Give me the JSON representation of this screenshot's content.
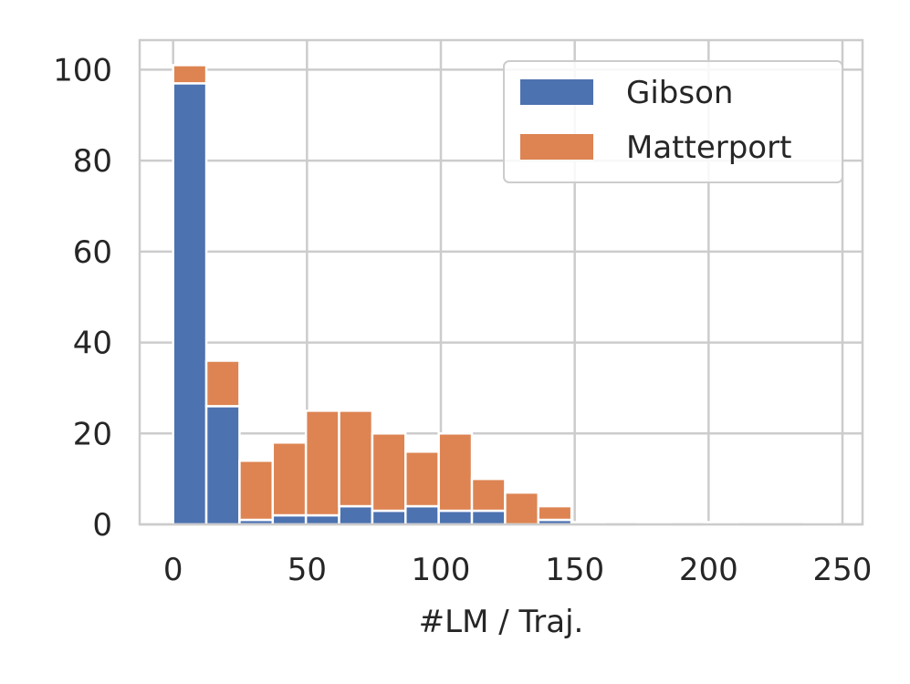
{
  "chart_data": {
    "type": "bar",
    "stacked": true,
    "xlabel": "#LM / Traj.",
    "ylabel": "",
    "title": "",
    "xlim": [
      -12.5,
      257.5
    ],
    "ylim": [
      0,
      106.5
    ],
    "xticks": [
      0,
      50,
      100,
      150,
      200,
      250
    ],
    "yticks": [
      0,
      20,
      40,
      60,
      80,
      100
    ],
    "grid": true,
    "legend_position": "top-right",
    "bin_width": 12.4,
    "bins": [
      0,
      12.4,
      24.8,
      37.2,
      49.6,
      62.0,
      74.4,
      86.8,
      99.2,
      111.6,
      124.0,
      136.4,
      148.8,
      161.2,
      173.6,
      186.0,
      198.4,
      210.8,
      223.2,
      235.6
    ],
    "series": [
      {
        "name": "Gibson",
        "color": "#4c72b0",
        "values": [
          97,
          26,
          1,
          2,
          2,
          4,
          3,
          4,
          3,
          3,
          0,
          1,
          0.5,
          0,
          0.5,
          0,
          0.5,
          0,
          0,
          0.5
        ]
      },
      {
        "name": "Matterport",
        "color": "#dd8452",
        "values": [
          4,
          10,
          13,
          16,
          23,
          21,
          17,
          12,
          17,
          7,
          7,
          3,
          0,
          0,
          0,
          0,
          0,
          0,
          0,
          0
        ]
      }
    ]
  }
}
